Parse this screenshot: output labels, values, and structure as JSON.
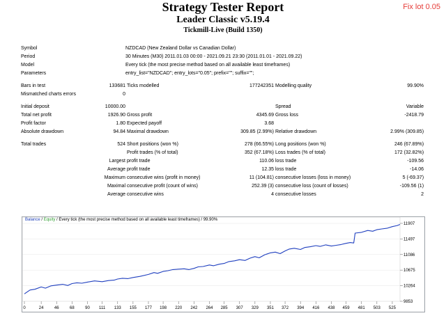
{
  "stamp": "Fix lot 0.05",
  "header": {
    "title": "Strategy Tester Report",
    "subtitle": "Leader Classic v5.19.4",
    "server": "Tickmill-Live (Build 1350)"
  },
  "info": {
    "symbol_label": "Symbol",
    "symbol": "NZDCAD (New Zealand Dollar vs Canadian Dollar)",
    "period_label": "Period",
    "period": "30 Minutes (M30) 2011.01.03 00:00 - 2021.09.21 23:30 (2011.01.01 - 2021.09.22)",
    "model_label": "Model",
    "model": "Every tick (the most precise method based on all available least timeframes)",
    "params_label": "Parameters",
    "params": "entry_list=\"NZDCAD\"; entry_lots=\"0.05\"; prefix=\"\"; suffix=\"\";"
  },
  "stats": {
    "bars_label": "Bars in test",
    "bars": "133681",
    "ticks_label": "Ticks modelled",
    "ticks": "177242351",
    "quality_label": "Modelling quality",
    "quality": "99.90%",
    "mismatch_label": "Mismatched charts errors",
    "mismatch": "0",
    "deposit_label": "Initial deposit",
    "deposit": "10000.00",
    "spread_label": "Spread",
    "spread": "Variable",
    "netprofit_label": "Total net profit",
    "netprofit": "1926.90",
    "grossprofit_label": "Gross profit",
    "grossprofit": "4345.69",
    "grossloss_label": "Gross loss",
    "grossloss": "-2418.79",
    "pf_label": "Profit factor",
    "pf": "1.80",
    "payoff_label": "Expected payoff",
    "payoff": "3.68",
    "absdd_label": "Absolute drawdown",
    "absdd": "94.84",
    "maxdd_label": "Maximal drawdown",
    "maxdd": "309.85 (2.99%)",
    "reldd_label": "Relative drawdown",
    "reldd": "2.99% (309.85)",
    "trades_label": "Total trades",
    "trades": "524",
    "short_label": "Short positions (won %)",
    "short": "278 (66.55%)",
    "long_label": "Long positions (won %)",
    "long": "246 (67.89%)",
    "proftr_label": "Profit trades (% of total)",
    "proftr": "352 (67.18%)",
    "losstr_label": "Loss trades (% of total)",
    "losstr": "172 (32.82%)",
    "largest": "Largest",
    "avg": "Average",
    "maximum": "Maximum",
    "maximal": "Maximal",
    "profit_trade_label": "profit trade",
    "loss_trade_label": "loss trade",
    "largest_profit": "110.06",
    "largest_loss": "-109.56",
    "avg_profit": "12.35",
    "avg_loss": "-14.06",
    "cons_wins_money_label": "consecutive wins (profit in money)",
    "cons_wins_money": "11 (104.81)",
    "cons_losses_money_label": "consecutive losses (loss in money)",
    "cons_losses_money": "5 (-69.37)",
    "cons_profit_count_label": "consecutive profit (count of wins)",
    "cons_profit_count": "252.39 (3)",
    "cons_loss_count_label": "consecutive loss (count of losses)",
    "cons_loss_count": "-109.56 (1)",
    "avg_cons_wins_label": "consecutive wins",
    "avg_cons_wins": "4",
    "avg_cons_losses_label": "consecutive losses",
    "avg_cons_losses": "2"
  },
  "chart_data": {
    "type": "line",
    "legend": {
      "balance": "Balance",
      "sep": " / ",
      "equity": "Equity",
      "rest": " / Every tick (the most precise method based on all available least timeframes) / 99.90%"
    },
    "x_ticks": [
      0,
      24,
      46,
      68,
      90,
      111,
      133,
      155,
      177,
      198,
      220,
      242,
      264,
      285,
      307,
      329,
      351,
      372,
      394,
      416,
      438,
      459,
      481,
      503,
      525
    ],
    "y_ticks": [
      9853,
      10264,
      10675,
      11086,
      11497,
      11907
    ],
    "xlim": [
      0,
      536
    ],
    "ylim": [
      9853,
      11907
    ],
    "series": [
      {
        "name": "Balance",
        "color": "#1f3fbf",
        "x": [
          0,
          8,
          15,
          24,
          30,
          38,
          46,
          55,
          62,
          68,
          75,
          82,
          90,
          100,
          111,
          120,
          128,
          133,
          140,
          148,
          155,
          165,
          177,
          185,
          190,
          198,
          205,
          212,
          220,
          228,
          235,
          242,
          248,
          255,
          264,
          270,
          278,
          285,
          292,
          300,
          307,
          315,
          322,
          329,
          335,
          343,
          351,
          358,
          365,
          372,
          378,
          385,
          394,
          400,
          408,
          416,
          422,
          430,
          438,
          445,
          452,
          459,
          465,
          470,
          472,
          481,
          490,
          497,
          503,
          510,
          518,
          525,
          532,
          536
        ],
        "y": [
          10050,
          10150,
          10170,
          10230,
          10200,
          10260,
          10280,
          10300,
          10270,
          10320,
          10340,
          10330,
          10360,
          10390,
          10370,
          10400,
          10410,
          10440,
          10460,
          10450,
          10480,
          10510,
          10560,
          10610,
          10590,
          10640,
          10660,
          10690,
          10700,
          10710,
          10690,
          10720,
          10760,
          10770,
          10810,
          10790,
          10830,
          10850,
          10900,
          10920,
          10950,
          10930,
          10990,
          11030,
          11000,
          11080,
          11130,
          11150,
          11110,
          11180,
          11230,
          11250,
          11220,
          11270,
          11290,
          11320,
          11300,
          11340,
          11310,
          11330,
          11350,
          11380,
          11400,
          11390,
          11650,
          11670,
          11720,
          11700,
          11740,
          11760,
          11780,
          11820,
          11850,
          11880
        ]
      }
    ]
  }
}
